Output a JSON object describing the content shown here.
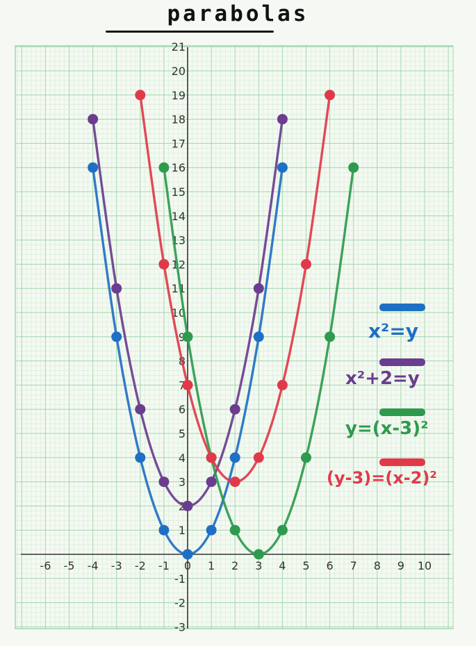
{
  "header": {
    "title": "parabolas"
  },
  "chart_data": {
    "type": "line",
    "title": "parabolas",
    "xlabel": "",
    "ylabel": "",
    "xlim": [
      -7,
      11
    ],
    "ylim": [
      -3,
      21
    ],
    "grid": true,
    "legend_position": "right",
    "x_ticks": [
      "-6",
      "-5",
      "-4",
      "-3",
      "-2",
      "-1",
      "0",
      "1",
      "2",
      "3",
      "4",
      "5",
      "6",
      "7",
      "8",
      "9",
      "10"
    ],
    "y_ticks": [
      "-3",
      "-2",
      "-1",
      "1",
      "2",
      "3",
      "4",
      "5",
      "6",
      "7",
      "8",
      "9",
      "10",
      "11",
      "12",
      "13",
      "14",
      "15",
      "16",
      "17",
      "18",
      "19",
      "20",
      "21"
    ],
    "series": [
      {
        "name": "x²=y",
        "color": "#1f6fc4",
        "points": [
          [
            -4,
            16
          ],
          [
            -3,
            9
          ],
          [
            -2,
            4
          ],
          [
            -1,
            1
          ],
          [
            0,
            0
          ],
          [
            1,
            1
          ],
          [
            2,
            4
          ],
          [
            3,
            9
          ],
          [
            4,
            16
          ]
        ]
      },
      {
        "name": "x²+2=y",
        "color": "#6a3d8f",
        "points": [
          [
            -4,
            18
          ],
          [
            -3,
            11
          ],
          [
            -2,
            6
          ],
          [
            -1,
            3
          ],
          [
            0,
            2
          ],
          [
            1,
            3
          ],
          [
            2,
            6
          ],
          [
            3,
            11
          ],
          [
            4,
            18
          ]
        ]
      },
      {
        "name": "y=(x-3)²",
        "color": "#2e9a4e",
        "points": [
          [
            -1,
            16
          ],
          [
            0,
            9
          ],
          [
            1,
            4
          ],
          [
            2,
            1
          ],
          [
            3,
            0
          ],
          [
            4,
            1
          ],
          [
            5,
            4
          ],
          [
            6,
            9
          ],
          [
            7,
            16
          ]
        ]
      },
      {
        "name": "(y-3)=(x-2)²",
        "color": "#e03a4a",
        "points": [
          [
            -2,
            19
          ],
          [
            -1,
            12
          ],
          [
            0,
            7
          ],
          [
            1,
            4
          ],
          [
            2,
            3
          ],
          [
            3,
            4
          ],
          [
            4,
            7
          ],
          [
            5,
            12
          ],
          [
            6,
            19
          ]
        ]
      }
    ]
  },
  "legend": [
    {
      "label": "x²=y",
      "color": "#1f6fc4"
    },
    {
      "label": "x²+2=y",
      "color": "#6a3d8f"
    },
    {
      "label": "y=(x-3)²",
      "color": "#2e9a4e"
    },
    {
      "label": "(y-3)=(x-2)²",
      "color": "#e03a4a"
    }
  ]
}
